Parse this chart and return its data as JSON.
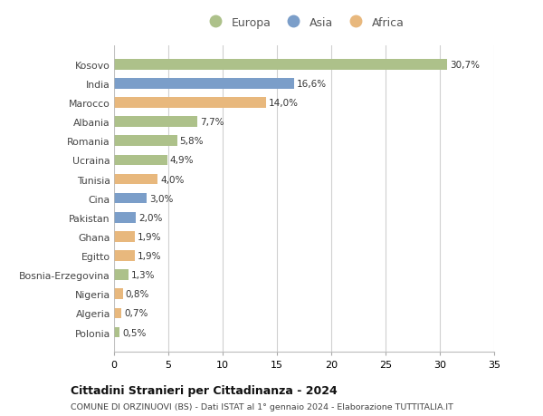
{
  "countries": [
    "Kosovo",
    "India",
    "Marocco",
    "Albania",
    "Romania",
    "Ucraina",
    "Tunisia",
    "Cina",
    "Pakistan",
    "Ghana",
    "Egitto",
    "Bosnia-Erzegovina",
    "Nigeria",
    "Algeria",
    "Polonia"
  ],
  "values": [
    30.7,
    16.6,
    14.0,
    7.7,
    5.8,
    4.9,
    4.0,
    3.0,
    2.0,
    1.9,
    1.9,
    1.3,
    0.8,
    0.7,
    0.5
  ],
  "labels": [
    "30,7%",
    "16,6%",
    "14,0%",
    "7,7%",
    "5,8%",
    "4,9%",
    "4,0%",
    "3,0%",
    "2,0%",
    "1,9%",
    "1,9%",
    "1,3%",
    "0,8%",
    "0,7%",
    "0,5%"
  ],
  "continents": [
    "Europa",
    "Asia",
    "Africa",
    "Europa",
    "Europa",
    "Europa",
    "Africa",
    "Asia",
    "Asia",
    "Africa",
    "Africa",
    "Europa",
    "Africa",
    "Africa",
    "Europa"
  ],
  "colors": {
    "Europa": "#adc18a",
    "Asia": "#7b9ec9",
    "Africa": "#e8b87d"
  },
  "legend_order": [
    "Europa",
    "Asia",
    "Africa"
  ],
  "title": "Cittadini Stranieri per Cittadinanza - 2024",
  "subtitle": "COMUNE DI ORZINUOVI (BS) - Dati ISTAT al 1° gennaio 2024 - Elaborazione TUTTITALIA.IT",
  "xlim": [
    0,
    35
  ],
  "xticks": [
    0,
    5,
    10,
    15,
    20,
    25,
    30,
    35
  ],
  "background_color": "#ffffff",
  "grid_color": "#d0d0d0",
  "bar_height": 0.55
}
